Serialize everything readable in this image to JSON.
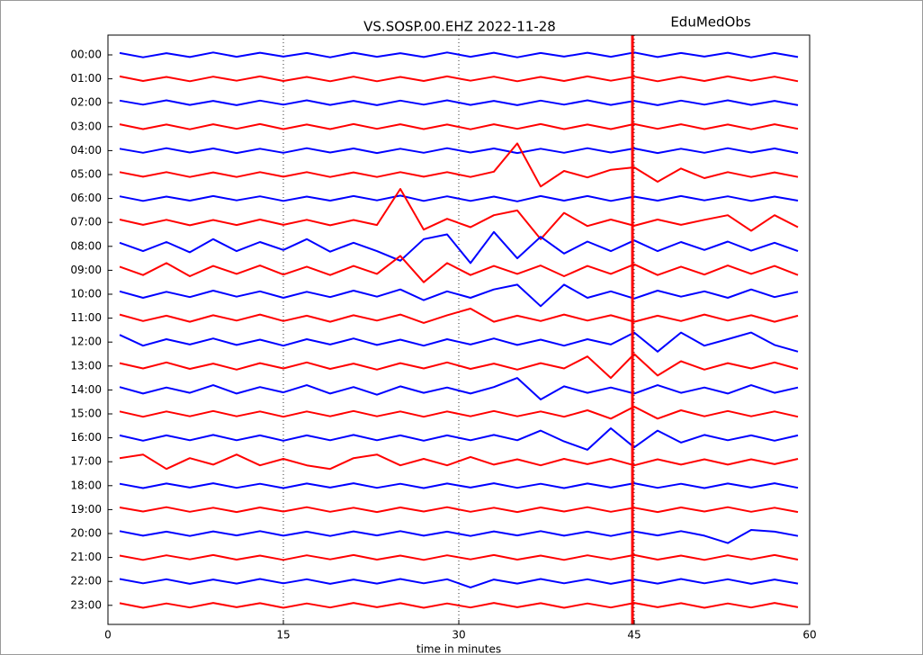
{
  "chart_data": {
    "type": "helicorder",
    "title": "VS.SOSP.00.EHZ 2022-11-28",
    "subtitle": "EduMedObs",
    "x_label": "time in minutes",
    "xlim": [
      0,
      60
    ],
    "xticks": [
      0,
      15,
      30,
      45,
      60
    ],
    "grid": true,
    "marker_x": 44.85,
    "marker_color": "#ff0000",
    "categories": [
      "00:00",
      "01:00",
      "02:00",
      "03:00",
      "04:00",
      "05:00",
      "06:00",
      "07:00",
      "08:00",
      "09:00",
      "10:00",
      "11:00",
      "12:00",
      "13:00",
      "14:00",
      "15:00",
      "16:00",
      "17:00",
      "18:00",
      "19:00",
      "20:00",
      "21:00",
      "22:00",
      "23:00"
    ],
    "x": [
      1,
      3,
      5,
      7,
      9,
      11,
      13,
      15,
      17,
      19,
      21,
      23,
      25,
      27,
      29,
      31,
      33,
      35,
      37,
      39,
      41,
      43,
      45,
      47,
      49,
      51,
      53,
      55,
      57,
      59
    ],
    "series": [
      {
        "color": "#0000ff",
        "values": [
          0.08,
          -0.1,
          0.07,
          -0.09,
          0.1,
          -0.08,
          0.09,
          -0.07,
          0.08,
          -0.1,
          0.09,
          -0.08,
          0.07,
          -0.09,
          0.1,
          -0.08,
          0.09,
          -0.1,
          0.08,
          -0.07,
          0.09,
          -0.08,
          0.1,
          -0.09,
          0.08,
          -0.07,
          0.09,
          -0.1,
          0.08,
          -0.09
        ]
      },
      {
        "color": "#ff0000",
        "values": [
          0.1,
          -0.09,
          0.08,
          -0.1,
          0.09,
          -0.08,
          0.1,
          -0.09,
          0.08,
          -0.1,
          0.09,
          -0.1,
          0.08,
          -0.09,
          0.1,
          -0.08,
          0.09,
          -0.1,
          0.08,
          -0.09,
          0.1,
          -0.08,
          0.09,
          -0.1,
          0.08,
          -0.09,
          0.1,
          -0.08,
          0.09,
          -0.1
        ]
      },
      {
        "color": "#0000ff",
        "values": [
          0.09,
          -0.08,
          0.1,
          -0.09,
          0.08,
          -0.1,
          0.09,
          -0.08,
          0.1,
          -0.09,
          0.08,
          -0.1,
          0.09,
          -0.08,
          0.1,
          -0.09,
          0.08,
          -0.1,
          0.09,
          -0.08,
          0.1,
          -0.09,
          0.08,
          -0.1,
          0.09,
          -0.08,
          0.1,
          -0.09,
          0.08,
          -0.1
        ]
      },
      {
        "color": "#ff0000",
        "values": [
          0.1,
          -0.1,
          0.09,
          -0.11,
          0.1,
          -0.09,
          0.11,
          -0.1,
          0.09,
          -0.1,
          0.11,
          -0.09,
          0.1,
          -0.1,
          0.09,
          -0.11,
          0.1,
          -0.09,
          0.11,
          -0.1,
          0.09,
          -0.1,
          0.11,
          -0.09,
          0.1,
          -0.1,
          0.09,
          -0.11,
          0.1,
          -0.09
        ]
      },
      {
        "color": "#0000ff",
        "values": [
          0.08,
          -0.09,
          0.1,
          -0.08,
          0.09,
          -0.1,
          0.08,
          -0.09,
          0.1,
          -0.08,
          0.09,
          -0.1,
          0.08,
          -0.09,
          0.1,
          -0.08,
          0.09,
          -0.1,
          0.08,
          -0.09,
          0.1,
          -0.08,
          0.09,
          -0.1,
          0.08,
          -0.09,
          0.1,
          -0.08,
          0.09,
          -0.1
        ]
      },
      {
        "color": "#ff0000",
        "values": [
          0.1,
          -0.09,
          0.1,
          -0.1,
          0.09,
          -0.1,
          0.1,
          -0.09,
          0.1,
          -0.1,
          0.09,
          -0.1,
          0.1,
          -0.09,
          0.1,
          -0.1,
          0.12,
          1.3,
          -0.5,
          0.15,
          -0.12,
          0.2,
          0.3,
          -0.3,
          0.25,
          -0.15,
          0.1,
          -0.1,
          0.09,
          -0.1
        ]
      },
      {
        "color": "#0000ff",
        "values": [
          0.09,
          -0.1,
          0.08,
          -0.09,
          0.1,
          -0.08,
          0.09,
          -0.1,
          0.08,
          -0.09,
          0.1,
          -0.08,
          0.12,
          -0.1,
          0.09,
          -0.1,
          0.08,
          -0.12,
          0.1,
          -0.09,
          0.1,
          -0.1,
          0.08,
          -0.09,
          0.1,
          -0.08,
          0.09,
          -0.1,
          0.08,
          -0.09
        ]
      },
      {
        "color": "#ff0000",
        "values": [
          0.12,
          -0.1,
          0.11,
          -0.12,
          0.1,
          -0.11,
          0.12,
          -0.1,
          0.11,
          -0.12,
          0.1,
          -0.11,
          1.4,
          -0.3,
          0.15,
          -0.2,
          0.3,
          0.5,
          -0.7,
          0.4,
          -0.15,
          0.12,
          -0.14,
          0.12,
          -0.1,
          0.11,
          0.3,
          -0.35,
          0.3,
          -0.2
        ]
      },
      {
        "color": "#0000ff",
        "values": [
          0.15,
          -0.2,
          0.18,
          -0.25,
          0.3,
          -0.2,
          0.18,
          -0.15,
          0.3,
          -0.22,
          0.15,
          -0.2,
          -0.6,
          0.3,
          0.5,
          -0.7,
          0.6,
          -0.5,
          0.4,
          -0.3,
          0.2,
          -0.2,
          0.25,
          -0.2,
          0.18,
          -0.15,
          0.2,
          -0.18,
          0.15,
          -0.2
        ]
      },
      {
        "color": "#ff0000",
        "values": [
          0.15,
          -0.2,
          0.3,
          -0.25,
          0.18,
          -0.15,
          0.2,
          -0.18,
          0.15,
          -0.2,
          0.18,
          -0.15,
          0.6,
          -0.5,
          0.3,
          -0.2,
          0.18,
          -0.15,
          0.2,
          -0.25,
          0.18,
          -0.15,
          0.25,
          -0.2,
          0.15,
          -0.18,
          0.2,
          -0.15,
          0.18,
          -0.2
        ]
      },
      {
        "color": "#0000ff",
        "values": [
          0.12,
          -0.15,
          0.1,
          -0.12,
          0.15,
          -0.1,
          0.12,
          -0.15,
          0.1,
          -0.12,
          0.15,
          -0.1,
          0.2,
          -0.25,
          0.12,
          -0.15,
          0.2,
          0.4,
          -0.5,
          0.4,
          -0.15,
          0.12,
          -0.18,
          0.15,
          -0.1,
          0.12,
          -0.15,
          0.2,
          -0.12,
          0.1
        ]
      },
      {
        "color": "#ff0000",
        "values": [
          0.15,
          -0.12,
          0.1,
          -0.15,
          0.12,
          -0.1,
          0.15,
          -0.12,
          0.1,
          -0.15,
          0.12,
          -0.1,
          0.15,
          -0.2,
          0.12,
          0.4,
          -0.15,
          0.1,
          -0.12,
          0.15,
          -0.1,
          0.12,
          -0.15,
          0.1,
          -0.12,
          0.15,
          -0.1,
          0.12,
          -0.15,
          0.1
        ]
      },
      {
        "color": "#0000ff",
        "values": [
          0.3,
          -0.15,
          0.12,
          -0.1,
          0.15,
          -0.12,
          0.1,
          -0.15,
          0.12,
          -0.1,
          0.15,
          -0.12,
          0.1,
          -0.15,
          0.12,
          -0.1,
          0.15,
          -0.12,
          0.1,
          -0.15,
          0.12,
          -0.1,
          0.4,
          -0.4,
          0.4,
          -0.15,
          0.12,
          0.4,
          -0.12,
          -0.4
        ]
      },
      {
        "color": "#ff0000",
        "values": [
          0.12,
          -0.1,
          0.15,
          -0.12,
          0.1,
          -0.15,
          0.12,
          -0.1,
          0.15,
          -0.12,
          0.1,
          -0.15,
          0.12,
          -0.1,
          0.15,
          -0.12,
          0.1,
          -0.15,
          0.12,
          -0.1,
          0.4,
          -0.5,
          0.5,
          -0.4,
          0.2,
          -0.15,
          0.12,
          -0.1,
          0.15,
          -0.12
        ]
      },
      {
        "color": "#0000ff",
        "values": [
          0.12,
          -0.15,
          0.1,
          -0.12,
          0.2,
          -0.15,
          0.12,
          -0.1,
          0.2,
          -0.15,
          0.12,
          -0.2,
          0.15,
          -0.12,
          0.1,
          -0.15,
          0.12,
          0.5,
          -0.4,
          0.15,
          -0.12,
          0.1,
          -0.15,
          0.2,
          -0.12,
          0.1,
          -0.15,
          0.2,
          -0.12,
          0.1
        ]
      },
      {
        "color": "#ff0000",
        "values": [
          0.1,
          -0.12,
          0.1,
          -0.1,
          0.12,
          -0.1,
          0.1,
          -0.12,
          0.1,
          -0.1,
          0.12,
          -0.1,
          0.1,
          -0.12,
          0.1,
          -0.1,
          0.12,
          -0.1,
          0.1,
          -0.12,
          0.15,
          -0.2,
          0.3,
          -0.2,
          0.15,
          -0.1,
          0.12,
          -0.1,
          0.1,
          -0.12
        ]
      },
      {
        "color": "#0000ff",
        "values": [
          0.1,
          -0.12,
          0.1,
          -0.1,
          0.12,
          -0.1,
          0.1,
          -0.12,
          0.1,
          -0.1,
          0.12,
          -0.1,
          0.1,
          -0.12,
          0.1,
          -0.1,
          0.12,
          -0.1,
          0.3,
          -0.15,
          -0.5,
          0.4,
          -0.4,
          0.3,
          -0.2,
          0.12,
          -0.1,
          0.1,
          -0.12,
          0.1
        ]
      },
      {
        "color": "#ff0000",
        "values": [
          0.15,
          0.3,
          -0.3,
          0.15,
          -0.12,
          0.3,
          -0.15,
          0.12,
          -0.15,
          -0.3,
          0.15,
          0.3,
          -0.15,
          0.12,
          -0.15,
          0.2,
          -0.12,
          0.1,
          -0.15,
          0.12,
          -0.1,
          0.12,
          -0.15,
          0.1,
          -0.12,
          0.1,
          -0.12,
          0.1,
          -0.1,
          0.12
        ]
      },
      {
        "color": "#0000ff",
        "values": [
          0.08,
          -0.1,
          0.09,
          -0.08,
          0.1,
          -0.09,
          0.08,
          -0.1,
          0.09,
          -0.08,
          0.1,
          -0.09,
          0.08,
          -0.1,
          0.09,
          -0.08,
          0.1,
          -0.09,
          0.08,
          -0.1,
          0.09,
          -0.08,
          0.1,
          -0.09,
          0.08,
          -0.1,
          0.09,
          -0.08,
          0.1,
          -0.09
        ]
      },
      {
        "color": "#ff0000",
        "values": [
          0.09,
          -0.08,
          0.1,
          -0.09,
          0.08,
          -0.1,
          0.09,
          -0.08,
          0.1,
          -0.09,
          0.08,
          -0.1,
          0.09,
          -0.08,
          0.1,
          -0.09,
          0.08,
          -0.1,
          0.09,
          -0.08,
          0.1,
          -0.09,
          0.08,
          -0.1,
          0.09,
          -0.08,
          0.1,
          -0.09,
          0.08,
          -0.1
        ]
      },
      {
        "color": "#0000ff",
        "values": [
          0.1,
          -0.09,
          0.08,
          -0.1,
          0.09,
          -0.08,
          0.1,
          -0.09,
          0.08,
          -0.1,
          0.09,
          -0.08,
          0.1,
          -0.09,
          0.08,
          -0.1,
          0.09,
          -0.08,
          0.1,
          -0.09,
          0.08,
          -0.1,
          0.09,
          -0.08,
          0.1,
          -0.09,
          -0.4,
          0.15,
          0.08,
          -0.1
        ]
      },
      {
        "color": "#ff0000",
        "values": [
          0.08,
          -0.1,
          0.09,
          -0.08,
          0.1,
          -0.09,
          0.08,
          -0.1,
          0.09,
          -0.08,
          0.1,
          -0.09,
          0.08,
          -0.1,
          0.09,
          -0.08,
          0.1,
          -0.09,
          0.08,
          -0.1,
          0.09,
          -0.08,
          0.1,
          -0.09,
          0.08,
          -0.1,
          0.09,
          -0.08,
          0.1,
          -0.09
        ]
      },
      {
        "color": "#0000ff",
        "values": [
          0.1,
          -0.08,
          0.09,
          -0.1,
          0.08,
          -0.09,
          0.1,
          -0.08,
          0.09,
          -0.1,
          0.08,
          -0.09,
          0.1,
          -0.08,
          0.09,
          -0.25,
          0.08,
          -0.09,
          0.1,
          -0.08,
          0.09,
          -0.1,
          0.08,
          -0.09,
          0.1,
          -0.08,
          0.09,
          -0.1,
          0.08,
          -0.09
        ]
      },
      {
        "color": "#ff0000",
        "values": [
          0.09,
          -0.1,
          0.08,
          -0.09,
          0.1,
          -0.08,
          0.09,
          -0.1,
          0.08,
          -0.09,
          0.1,
          -0.08,
          0.09,
          -0.1,
          0.08,
          -0.09,
          0.1,
          -0.08,
          0.09,
          -0.1,
          0.08,
          -0.09,
          0.1,
          -0.08,
          0.09,
          -0.1,
          0.08,
          -0.09,
          0.1,
          -0.08
        ]
      }
    ]
  }
}
